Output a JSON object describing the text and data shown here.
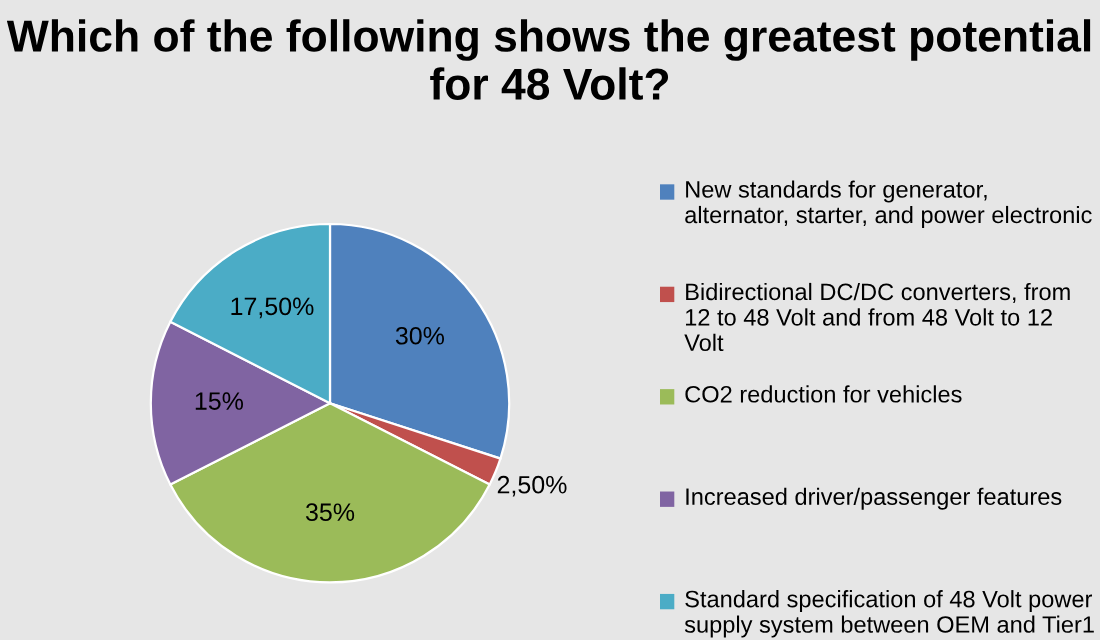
{
  "chart_data": {
    "type": "pie",
    "title": "Which of the following shows the greatest potential for 48 Volt?",
    "categories": [
      "New standards for generator, alternator, starter, and power electronic",
      "Bidirectional DC/DC converters, from 12 to 48 Volt and from 48 Volt to 12 Volt",
      "CO2 reduction for vehicles",
      "Increased driver/passenger features",
      "Standard specification of 48 Volt power supply system between OEM and Tier1"
    ],
    "values": [
      30,
      2.5,
      35,
      15,
      17.5
    ],
    "value_labels": [
      "30%",
      "2,50%",
      "35%",
      "15%",
      "17,50%"
    ],
    "colors": [
      "#4f81bd",
      "#c0504d",
      "#9bbb59",
      "#8064a2",
      "#4bacc6"
    ],
    "legend": "right"
  }
}
